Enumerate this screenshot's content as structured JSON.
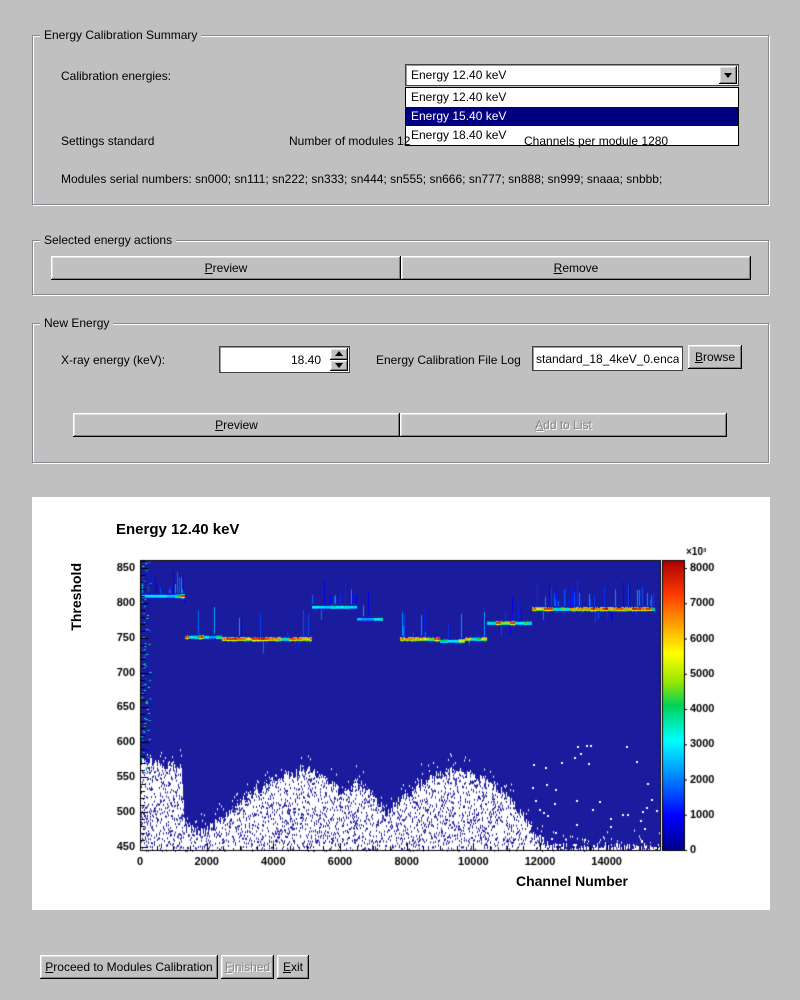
{
  "app": {
    "bg_color": "#c0c0c0",
    "highlight_color": "#000080"
  },
  "summary": {
    "legend": "Energy Calibration Summary",
    "calibration_energies_label": "Calibration energies:",
    "combo_value": "Energy 12.40 keV",
    "dropdown_options": [
      "Energy 12.40 keV",
      "Energy 15.40 keV",
      "Energy 18.40 keV"
    ],
    "dropdown_selected_index": 1,
    "settings_label": "Settings standard",
    "modules_label": "Number of modules 12",
    "channels_label": "Channels per module 1280",
    "serials_label": "Modules serial numbers: sn000; sn111; sn222; sn333; sn444; sn555; sn666; sn777; sn888; sn999; snaaa; snbbb;"
  },
  "actions": {
    "legend": "Selected energy actions",
    "preview": {
      "text": "Preview",
      "key": "P"
    },
    "remove": {
      "text": "Remove",
      "key": "R"
    }
  },
  "new_energy": {
    "legend": "New Energy",
    "xray_label": "X-ray energy (keV):",
    "energy_value": "18.40",
    "file_log_label": "Energy Calibration File Log",
    "file_value": "standard_18_4keV_0.encal",
    "browse": {
      "text": "Browse",
      "key": "B"
    },
    "preview": {
      "text": "Preview",
      "key": "P"
    },
    "add": {
      "text": "Add to List",
      "key": "A"
    }
  },
  "footer": {
    "proceed": {
      "text": "Proceed to Modules Calibration",
      "key": "P"
    },
    "finished": {
      "text": "Finished",
      "key": "F"
    },
    "exit": {
      "text": "Exit",
      "key": "E"
    }
  },
  "chart_data": {
    "type": "heatmap",
    "title": "Energy 12.40 keV",
    "xlabel": "Channel Number",
    "ylabel": "Threshold",
    "xlim": [
      0,
      15600
    ],
    "ylim": [
      445,
      862
    ],
    "xticks": [
      0,
      2000,
      4000,
      6000,
      8000,
      10000,
      12000,
      14000
    ],
    "x_minor_step": 500,
    "yticks": [
      450,
      500,
      550,
      600,
      650,
      700,
      750,
      800,
      850
    ],
    "y_minor_step": 10,
    "grid": false,
    "legend_position": "right-colorbar",
    "colors": {
      "background": "#1b1b9e",
      "frame": "#000000"
    },
    "colorbar": {
      "min": 0,
      "max": 8000,
      "tick_step": 1000,
      "exponent_label": "×10³"
    },
    "palette": [
      [
        0.0,
        [
          0,
          0,
          140
        ]
      ],
      [
        0.12,
        [
          0,
          0,
          255
        ]
      ],
      [
        0.28,
        [
          0,
          160,
          255
        ]
      ],
      [
        0.38,
        [
          0,
          255,
          255
        ]
      ],
      [
        0.5,
        [
          0,
          210,
          90
        ]
      ],
      [
        0.58,
        [
          150,
          230,
          0
        ]
      ],
      [
        0.68,
        [
          255,
          255,
          0
        ]
      ],
      [
        0.78,
        [
          255,
          160,
          0
        ]
      ],
      [
        0.88,
        [
          255,
          60,
          0
        ]
      ],
      [
        1.0,
        [
          170,
          0,
          0
        ]
      ]
    ],
    "bands": [
      {
        "x0": 50,
        "x1": 1350,
        "y": 810,
        "style": "mixed-cool",
        "tick_prob": 0.3
      },
      {
        "x0": 1350,
        "x1": 2450,
        "y": 751,
        "style": "mixed",
        "tick_prob": 0.1
      },
      {
        "x0": 2450,
        "x1": 5150,
        "y": 749,
        "style": "hot",
        "tick_prob": 0.08
      },
      {
        "x0": 5150,
        "x1": 6500,
        "y": 795,
        "style": "cool",
        "tick_prob": 0.22
      },
      {
        "x0": 6500,
        "x1": 7300,
        "y": 777,
        "style": "cool",
        "tick_prob": 0.1
      },
      {
        "x0": 7800,
        "x1": 9000,
        "y": 748,
        "style": "hot",
        "tick_prob": 0.12
      },
      {
        "x0": 9000,
        "x1": 9750,
        "y": 746,
        "style": "cool",
        "tick_prob": 0.12
      },
      {
        "x0": 9750,
        "x1": 10400,
        "y": 748,
        "style": "hot",
        "tick_prob": 0.1
      },
      {
        "x0": 10400,
        "x1": 11750,
        "y": 772,
        "style": "mixed",
        "tick_prob": 0.15
      },
      {
        "x0": 11750,
        "x1": 15450,
        "y": 792,
        "style": "hot",
        "tick_prob": 0.35
      }
    ],
    "noise_envelope": [
      [
        0,
        572
      ],
      [
        700,
        568
      ],
      [
        1250,
        562
      ],
      [
        1350,
        478
      ],
      [
        1900,
        468
      ],
      [
        2400,
        486
      ],
      [
        3000,
        515
      ],
      [
        3700,
        536
      ],
      [
        4400,
        552
      ],
      [
        5100,
        560
      ],
      [
        5700,
        544
      ],
      [
        6100,
        520
      ],
      [
        6500,
        538
      ],
      [
        6900,
        528
      ],
      [
        7400,
        498
      ],
      [
        7800,
        515
      ],
      [
        8600,
        545
      ],
      [
        9300,
        558
      ],
      [
        10000,
        552
      ],
      [
        10600,
        538
      ],
      [
        11100,
        518
      ],
      [
        11500,
        495
      ],
      [
        11800,
        468
      ],
      [
        12200,
        452
      ],
      [
        12800,
        448
      ],
      [
        15600,
        448
      ]
    ],
    "left_noise": {
      "x0": 0,
      "x1": 260,
      "y0": 555,
      "y1": 860,
      "density": 0.45
    },
    "scatter_dots": {
      "x0": 11600,
      "x1": 15500,
      "y0": 448,
      "y1": 600,
      "count": 45
    }
  }
}
